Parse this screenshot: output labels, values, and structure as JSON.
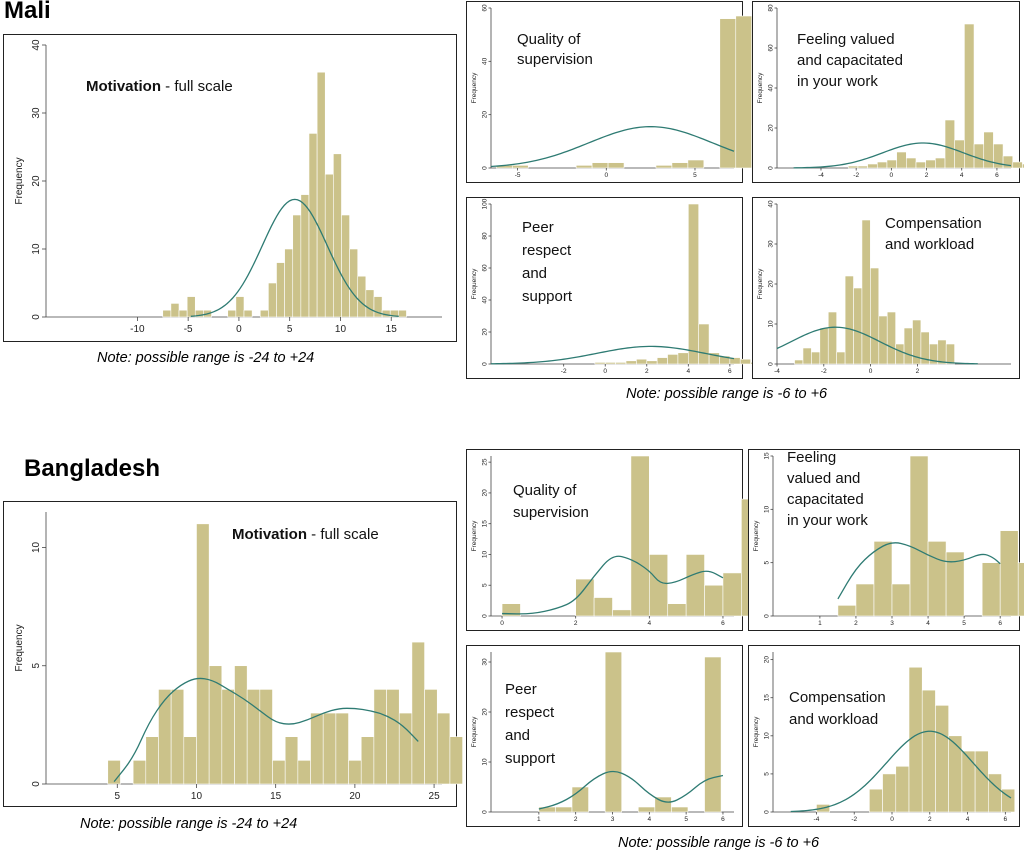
{
  "sections": [
    {
      "country": "Mali",
      "note_main": "Note: possible range is -24 to +24",
      "note_sub": "Note: possible range is -6 to +6"
    },
    {
      "country": "Bangladesh",
      "note_main": "Note: possible range is -24 to +24",
      "note_sub": "Note: possible range is -6 to +6"
    }
  ],
  "chart_data": [
    {
      "id": "mali-main",
      "type": "bar",
      "country": "Mali",
      "title_bold": "Motivation",
      "title_rest": " - full scale",
      "ylabel": "Frequency",
      "xlim": [
        -19,
        20
      ],
      "ylim": [
        0,
        40
      ],
      "xticks": [
        -10,
        -5,
        0,
        5,
        10,
        15
      ],
      "yticks": [
        0,
        10,
        20,
        30,
        40
      ],
      "bin_start": -7.5,
      "bin_width": 0.8,
      "values": [
        1,
        2,
        1,
        3,
        1,
        1,
        0,
        0,
        1,
        3,
        1,
        0,
        1,
        5,
        8,
        10,
        15,
        18,
        27,
        36,
        21,
        24,
        15,
        10,
        6,
        4,
        3,
        1,
        1,
        1
      ],
      "curve_mean": 5.5,
      "curve_sd": 3.2,
      "curve_peak": 17.3
    },
    {
      "id": "mali-quality",
      "type": "bar",
      "country": "Mali",
      "title_lines": [
        "Quality of",
        "supervision"
      ],
      "ylabel": "Frequency",
      "xlim": [
        -6.5,
        7.2
      ],
      "ylim": [
        0,
        60
      ],
      "xticks": [
        -5,
        0,
        5
      ],
      "yticks": [
        0,
        20,
        40,
        60
      ],
      "bin_start": -6.2,
      "bin_width": 0.9,
      "values": [
        1,
        1,
        0,
        0,
        0,
        1,
        2,
        2,
        0,
        0,
        1,
        2,
        3,
        0,
        56,
        57,
        16,
        11,
        8,
        5,
        3,
        2
      ],
      "curve_mean": 2.5,
      "curve_sd": 3.5,
      "curve_peak": 15.5
    },
    {
      "id": "mali-feeling",
      "type": "bar",
      "country": "Mali",
      "title_lines": [
        "Feeling valued",
        "and capacitated",
        "in your work"
      ],
      "ylabel": "Frequency",
      "xlim": [
        -6.5,
        6.8
      ],
      "ylim": [
        0,
        80
      ],
      "xticks": [
        -4,
        -2,
        0,
        2,
        4,
        6
      ],
      "yticks": [
        0,
        20,
        40,
        60,
        80
      ],
      "bin_start": -3,
      "bin_width": 0.55,
      "values": [
        0,
        1,
        1,
        2,
        3,
        4,
        8,
        5,
        3,
        4,
        5,
        24,
        14,
        72,
        12,
        18,
        12,
        6,
        3,
        2,
        4,
        1
      ],
      "curve_mean": 1.8,
      "curve_sd": 2.3,
      "curve_peak": 12.5
    },
    {
      "id": "mali-peer",
      "type": "bar",
      "country": "Mali",
      "title_lines": [
        "Peer",
        "respect",
        "and",
        "support"
      ],
      "ylabel": "Frequency",
      "xlim": [
        -5.5,
        6.2
      ],
      "ylim": [
        0,
        100
      ],
      "xticks": [
        -2,
        0,
        2,
        4,
        6
      ],
      "yticks": [
        0,
        20,
        40,
        60,
        80,
        100
      ],
      "bin_start": -2,
      "bin_width": 0.5,
      "values": [
        0,
        0,
        0,
        1,
        1,
        1,
        2,
        3,
        2,
        4,
        6,
        7,
        100,
        25,
        7,
        5,
        4,
        3,
        1,
        1,
        1
      ],
      "curve_mean": 2.2,
      "curve_sd": 2.6,
      "curve_peak": 11
    },
    {
      "id": "mali-comp",
      "type": "bar",
      "country": "Mali",
      "title_lines": [
        "Compensation",
        "and workload"
      ],
      "ylabel": "Frequency",
      "xlim": [
        -4,
        6
      ],
      "ylim": [
        0,
        40
      ],
      "xticks": [
        -4,
        -2,
        0,
        2
      ],
      "yticks": [
        0,
        10,
        20,
        30,
        40
      ],
      "bin_start": -3.25,
      "bin_width": 0.36,
      "values": [
        1,
        4,
        3,
        9,
        13,
        3,
        22,
        19,
        36,
        24,
        12,
        13,
        5,
        9,
        11,
        8,
        5,
        6,
        5
      ],
      "curve_mean": -1.5,
      "curve_sd": 1.9,
      "curve_peak": 9.2
    },
    {
      "id": "bd-main",
      "type": "bar",
      "country": "Bangladesh",
      "title_bold": "Motivation",
      "title_rest": " - full scale",
      "ylabel": "Frequency",
      "xlim": [
        0.5,
        25.5
      ],
      "ylim": [
        0,
        11.5
      ],
      "xticks": [
        5,
        10,
        15,
        20,
        25
      ],
      "yticks": [
        0,
        5,
        10
      ],
      "bin_start": 4.4,
      "bin_width": 0.8,
      "values": [
        1,
        0,
        1,
        2,
        4,
        4,
        2,
        11,
        5,
        4,
        5,
        4,
        4,
        1,
        2,
        1,
        3,
        3,
        3,
        1,
        2,
        4,
        4,
        3,
        6,
        4,
        3,
        2
      ],
      "curve_points": [
        [
          4.8,
          0.1
        ],
        [
          6,
          1.1
        ],
        [
          7,
          2.6
        ],
        [
          8,
          3.6
        ],
        [
          9,
          4.2
        ],
        [
          10,
          4.5
        ],
        [
          11,
          4.4
        ],
        [
          12,
          4
        ],
        [
          13,
          3.6
        ],
        [
          14,
          3.1
        ],
        [
          15,
          2.6
        ],
        [
          16,
          2.5
        ],
        [
          17,
          2.7
        ],
        [
          18,
          3
        ],
        [
          19,
          3.2
        ],
        [
          20,
          3.2
        ],
        [
          21,
          3.1
        ],
        [
          22,
          2.9
        ],
        [
          23,
          2.5
        ],
        [
          24,
          1.8
        ]
      ]
    },
    {
      "id": "bd-quality",
      "type": "bar",
      "country": "Bangladesh",
      "title_lines": [
        "Quality of",
        "supervision"
      ],
      "ylabel": "Frequency",
      "xlim": [
        -0.3,
        6.3
      ],
      "ylim": [
        0,
        26
      ],
      "xticks": [
        0,
        2,
        4,
        6
      ],
      "yticks": [
        0,
        5,
        10,
        15,
        20,
        25
      ],
      "bin_start": 0,
      "bin_width": 0.5,
      "values": [
        2,
        0,
        0,
        0,
        6,
        3,
        1,
        26,
        10,
        2,
        10,
        5,
        7,
        19
      ],
      "curve_points": [
        [
          0,
          0.4
        ],
        [
          0.8,
          0.3
        ],
        [
          1.5,
          1.2
        ],
        [
          2,
          2.5
        ],
        [
          2.5,
          6.5
        ],
        [
          3,
          10
        ],
        [
          3.5,
          9.3
        ],
        [
          4,
          7.4
        ],
        [
          4.3,
          5.2
        ],
        [
          4.7,
          5.4
        ],
        [
          5.2,
          6.8
        ],
        [
          5.6,
          7.5
        ],
        [
          6,
          6.2
        ]
      ]
    },
    {
      "id": "bd-feeling",
      "type": "bar",
      "country": "Bangladesh",
      "title_lines": [
        "Feeling",
        "valued and",
        "capacitated",
        "in your work"
      ],
      "ylabel": "Frequency",
      "xlim": [
        -0.3,
        6.3
      ],
      "ylim": [
        0,
        15
      ],
      "xticks": [
        1,
        2,
        3,
        4,
        5,
        6
      ],
      "yticks": [
        0,
        5,
        10,
        15
      ],
      "bin_start": 1.5,
      "bin_width": 0.5,
      "values": [
        1,
        3,
        7,
        3,
        15,
        7,
        6,
        0,
        5,
        8,
        5,
        15
      ],
      "curve_points": [
        [
          1.5,
          1.6
        ],
        [
          2,
          4.5
        ],
        [
          2.5,
          6.1
        ],
        [
          3,
          7
        ],
        [
          3.5,
          6.6
        ],
        [
          4,
          5.7
        ],
        [
          4.5,
          5
        ],
        [
          5,
          5.2
        ],
        [
          5.5,
          5.9
        ],
        [
          5.8,
          5.5
        ],
        [
          6,
          4.9
        ]
      ]
    },
    {
      "id": "bd-peer",
      "type": "bar",
      "country": "Bangladesh",
      "title_lines": [
        "Peer",
        "respect",
        "and",
        "support"
      ],
      "ylabel": "Frequency",
      "xlim": [
        -0.3,
        6.3
      ],
      "ylim": [
        0,
        32
      ],
      "xticks": [
        1,
        2,
        3,
        4,
        5,
        6
      ],
      "yticks": [
        0,
        10,
        20,
        30
      ],
      "bin_start": 1,
      "bin_width": 0.45,
      "values": [
        1,
        1,
        5,
        0,
        32,
        0,
        1,
        3,
        1,
        0,
        31
      ],
      "curve_points": [
        [
          1,
          0.6
        ],
        [
          1.5,
          1.5
        ],
        [
          2,
          3.5
        ],
        [
          2.5,
          6.8
        ],
        [
          3,
          8.5
        ],
        [
          3.5,
          7
        ],
        [
          4,
          3.5
        ],
        [
          4.5,
          1.5
        ],
        [
          5,
          3.3
        ],
        [
          5.5,
          6.5
        ],
        [
          6,
          7.3
        ]
      ]
    },
    {
      "id": "bd-comp",
      "type": "bar",
      "country": "Bangladesh",
      "title_lines": [
        "Compensation",
        "and workload"
      ],
      "ylabel": "Frequency",
      "xlim": [
        -6.3,
        6.3
      ],
      "ylim": [
        0,
        21
      ],
      "xticks": [
        -4,
        -2,
        0,
        2,
        4,
        6
      ],
      "yticks": [
        0,
        5,
        10,
        15,
        20
      ],
      "bin_start": -4,
      "bin_width": 0.7,
      "values": [
        1,
        0,
        0,
        0,
        3,
        5,
        6,
        19,
        16,
        14,
        10,
        8,
        8,
        5,
        3
      ],
      "curve_mean": 2,
      "curve_sd": 2.3,
      "curve_peak": 10.6
    }
  ]
}
